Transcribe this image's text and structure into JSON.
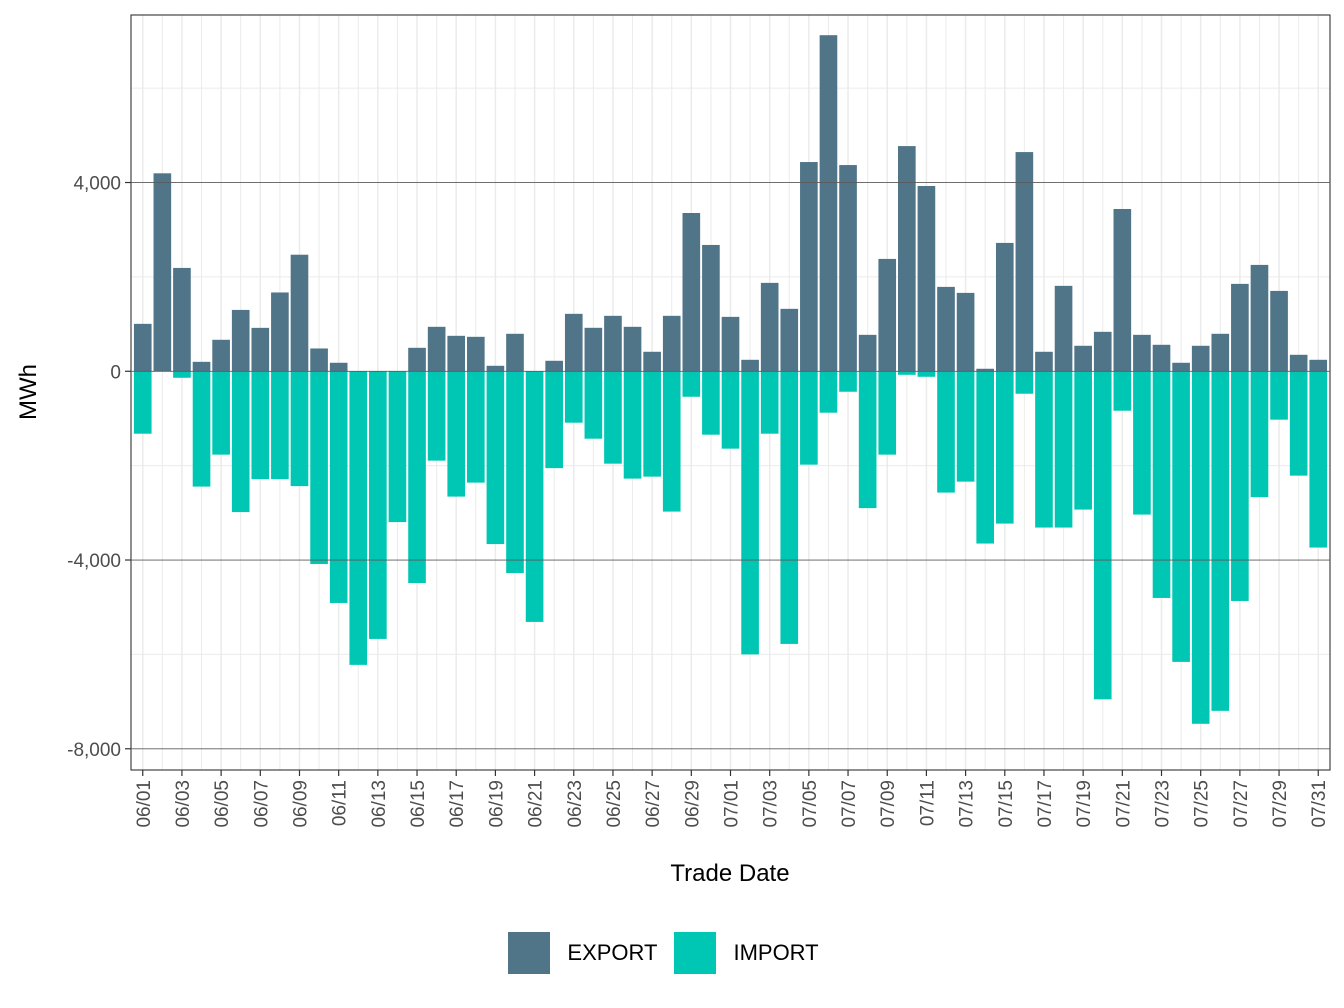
{
  "chart_data": {
    "type": "bar",
    "stacked": "diverging",
    "title": "",
    "xlabel": "Trade Date",
    "ylabel": "MWh",
    "ylim": [
      -8450,
      7550
    ],
    "yticks": [
      -8000,
      -4000,
      0,
      4000
    ],
    "ytick_labels": [
      "-8,000",
      "-4,000",
      "0",
      "4,000"
    ],
    "grid": true,
    "legend_position": "bottom",
    "categories": [
      "06/01",
      "06/02",
      "06/03",
      "06/04",
      "06/05",
      "06/06",
      "06/07",
      "06/08",
      "06/09",
      "06/10",
      "06/11",
      "06/12",
      "06/13",
      "06/14",
      "06/15",
      "06/16",
      "06/17",
      "06/18",
      "06/19",
      "06/20",
      "06/21",
      "06/22",
      "06/23",
      "06/24",
      "06/25",
      "06/26",
      "06/27",
      "06/28",
      "06/29",
      "06/30",
      "07/01",
      "07/02",
      "07/03",
      "07/04",
      "07/05",
      "07/06",
      "07/07",
      "07/08",
      "07/09",
      "07/10",
      "07/11",
      "07/12",
      "07/13",
      "07/14",
      "07/15",
      "07/16",
      "07/17",
      "07/18",
      "07/19",
      "07/20",
      "07/21",
      "07/22",
      "07/23",
      "07/24",
      "07/25",
      "07/26",
      "07/27",
      "07/28",
      "07/29",
      "07/30",
      "07/31"
    ],
    "xtick_labels": [
      "06/01",
      "06/03",
      "06/05",
      "06/07",
      "06/09",
      "06/11",
      "06/13",
      "06/15",
      "06/17",
      "06/19",
      "06/21",
      "06/23",
      "06/25",
      "06/27",
      "06/29",
      "07/01",
      "07/03",
      "07/05",
      "07/07",
      "07/09",
      "07/11",
      "07/13",
      "07/15",
      "07/17",
      "07/19",
      "07/21",
      "07/23",
      "07/25",
      "07/27",
      "07/29",
      "07/31"
    ],
    "series": [
      {
        "name": "EXPORT",
        "color": "#507488",
        "values": [
          1005,
          4195,
          2190,
          200,
          667,
          1300,
          920,
          1670,
          2470,
          483,
          180,
          0,
          0,
          0,
          497,
          942,
          751,
          730,
          116,
          794,
          0,
          222,
          1217,
          921,
          1175,
          942,
          413,
          1175,
          3354,
          2677,
          1153,
          243,
          1873,
          1323,
          4434,
          7122,
          4370,
          772,
          2381,
          4772,
          3926,
          1788,
          1661,
          53,
          2720,
          4645,
          413,
          1810,
          540,
          836,
          3439,
          772,
          561,
          180,
          540,
          794,
          1852,
          2254,
          1703,
          349,
          243
        ]
      },
      {
        "name": "IMPORT",
        "color": "#00C7B3",
        "values": [
          -1323,
          0,
          -138,
          -2444,
          -1767,
          -2984,
          -2286,
          -2286,
          -2434,
          -4085,
          -4910,
          -6222,
          -5672,
          -3196,
          -4487,
          -1894,
          -2656,
          -2360,
          -3662,
          -4275,
          -5312,
          -2053,
          -1090,
          -1429,
          -1958,
          -2275,
          -2233,
          -2974,
          -540,
          -1344,
          -1640,
          -6000,
          -1323,
          -5778,
          -1979,
          -878,
          -434,
          -2900,
          -1767,
          -75,
          -117,
          -2571,
          -2339,
          -3651,
          -3228,
          -476,
          -3312,
          -3312,
          -2931,
          -6952,
          -836,
          -3037,
          -4804,
          -6159,
          -7471,
          -7196,
          -4868,
          -2667,
          -1026,
          -2212,
          -3736
        ]
      }
    ]
  },
  "legend": {
    "items": [
      {
        "label": "EXPORT",
        "color": "#507488"
      },
      {
        "label": "IMPORT",
        "color": "#00C7B3"
      }
    ]
  }
}
